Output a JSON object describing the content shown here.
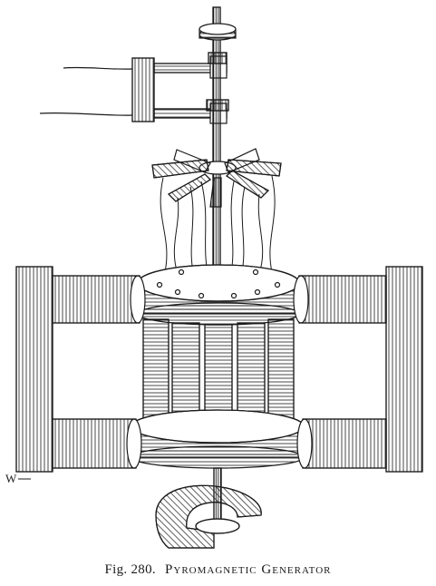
{
  "figure": {
    "number_label": "Fig. 280.",
    "title": "Pyromagnetic Generator",
    "engraver_mark": "W"
  },
  "colors": {
    "ink": "#1a1a1a",
    "paper": "#ffffff"
  }
}
